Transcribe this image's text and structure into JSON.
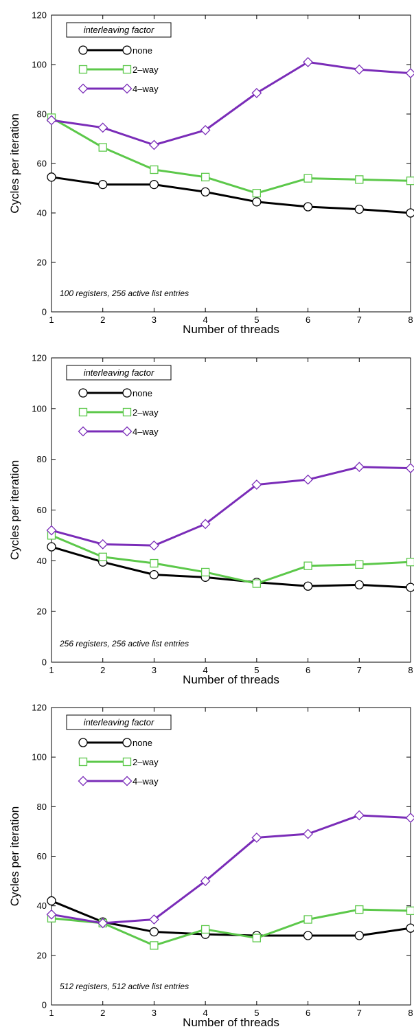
{
  "chart_data": [
    {
      "type": "line",
      "xlabel": "Number of threads",
      "ylabel": "Cycles per iteration",
      "ylim": [
        0,
        120
      ],
      "xlim": [
        1,
        8
      ],
      "x": [
        1,
        2,
        3,
        4,
        5,
        6,
        7,
        8
      ],
      "yticks": [
        0,
        20,
        40,
        60,
        80,
        100,
        120
      ],
      "legend_title": "interleaving factor",
      "legend_placement": "top-left",
      "annotation": "100 registers, 256 active list entries",
      "grid": false,
      "series": [
        {
          "name": "none",
          "marker": "circle",
          "color": "#000000",
          "values": [
            54.5,
            51.5,
            51.5,
            48.5,
            44.5,
            42.5,
            41.5,
            40
          ]
        },
        {
          "name": "2–way",
          "marker": "square",
          "color": "#5cc84a",
          "values": [
            78.5,
            66.5,
            57.5,
            54.5,
            48,
            54,
            53.5,
            53
          ]
        },
        {
          "name": "4–way",
          "marker": "diamond",
          "color": "#7a2cb8",
          "values": [
            77.5,
            74.5,
            67.5,
            73.5,
            88.5,
            101,
            98,
            96.5
          ]
        }
      ]
    },
    {
      "type": "line",
      "xlabel": "Number of threads",
      "ylabel": "Cycles per iteration",
      "ylim": [
        0,
        120
      ],
      "xlim": [
        1,
        8
      ],
      "x": [
        1,
        2,
        3,
        4,
        5,
        6,
        7,
        8
      ],
      "yticks": [
        0,
        20,
        40,
        60,
        80,
        100,
        120
      ],
      "legend_title": "interleaving factor",
      "legend_placement": "top-left",
      "annotation": "256 registers, 256 active list entries",
      "grid": false,
      "series": [
        {
          "name": "none",
          "marker": "circle",
          "color": "#000000",
          "values": [
            45.5,
            39.5,
            34.5,
            33.5,
            31.5,
            30,
            30.5,
            29.5
          ]
        },
        {
          "name": "2–way",
          "marker": "square",
          "color": "#5cc84a",
          "values": [
            50,
            41.5,
            39,
            35.5,
            31,
            38,
            38.5,
            39.5
          ]
        },
        {
          "name": "4–way",
          "marker": "diamond",
          "color": "#7a2cb8",
          "values": [
            52,
            46.5,
            46,
            54.5,
            70,
            72,
            77,
            76.5
          ]
        }
      ]
    },
    {
      "type": "line",
      "xlabel": "Number of threads",
      "ylabel": "Cycles per iteration",
      "ylim": [
        0,
        120
      ],
      "xlim": [
        1,
        8
      ],
      "x": [
        1,
        2,
        3,
        4,
        5,
        6,
        7,
        8
      ],
      "yticks": [
        0,
        20,
        40,
        60,
        80,
        100,
        120
      ],
      "legend_title": "interleaving factor",
      "legend_placement": "top-left",
      "annotation": "512 registers, 512 active list entries",
      "grid": false,
      "series": [
        {
          "name": "none",
          "marker": "circle",
          "color": "#000000",
          "values": [
            42,
            33.5,
            29.5,
            28.5,
            28,
            28,
            28,
            31
          ]
        },
        {
          "name": "2–way",
          "marker": "square",
          "color": "#5cc84a",
          "values": [
            35,
            33,
            24,
            30.5,
            27,
            34.5,
            38.5,
            38
          ]
        },
        {
          "name": "4–way",
          "marker": "diamond",
          "color": "#7a2cb8",
          "values": [
            36.5,
            33,
            34.5,
            50,
            67.5,
            69,
            76.5,
            75.5
          ]
        }
      ]
    }
  ]
}
